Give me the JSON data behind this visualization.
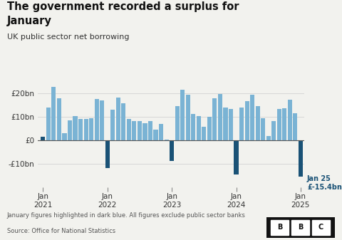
{
  "title_line1": "The government recorded a surplus for",
  "title_line2": "January",
  "subtitle": "UK public sector net borrowing",
  "note": "January figures highlighted in dark blue. All figures exclude public sector banks",
  "source": "Source: Office for National Statistics",
  "bar_color_light": "#7ab3d4",
  "bar_color_dark": "#1a5276",
  "annotation_color": "#1a5276",
  "background_color": "#f2f2ee",
  "ylim": [
    -20,
    27
  ],
  "yticks": [
    -10,
    0,
    10,
    20
  ],
  "ytick_labels": [
    "-£10bn",
    "£0",
    "£10bn",
    "£20bn"
  ],
  "values": [
    1.4,
    14.0,
    22.8,
    18.0,
    3.0,
    8.6,
    10.4,
    9.0,
    9.0,
    9.4,
    17.7,
    16.8,
    -11.9,
    12.9,
    18.1,
    15.7,
    9.0,
    8.1,
    8.3,
    7.3,
    8.2,
    4.4,
    7.0,
    0.4,
    -8.7,
    14.5,
    21.5,
    19.5,
    11.3,
    10.2,
    5.6,
    10.0,
    18.0,
    19.6,
    13.9,
    13.2,
    -14.7,
    14.0,
    16.5,
    19.3,
    14.6,
    9.5,
    1.8,
    8.3,
    13.2,
    13.6,
    17.4,
    11.5,
    -15.4
  ],
  "jan_indices": [
    0,
    12,
    24,
    36,
    48
  ],
  "xtick_positions": [
    0,
    12,
    24,
    36,
    48
  ],
  "xtick_labels": [
    "Jan\n2021",
    "Jan\n2022",
    "Jan\n2023",
    "Jan\n2024",
    "Jan\n2025"
  ],
  "annotation_text": "Jan 25\n£-15.4bn",
  "annotation_index": 48
}
